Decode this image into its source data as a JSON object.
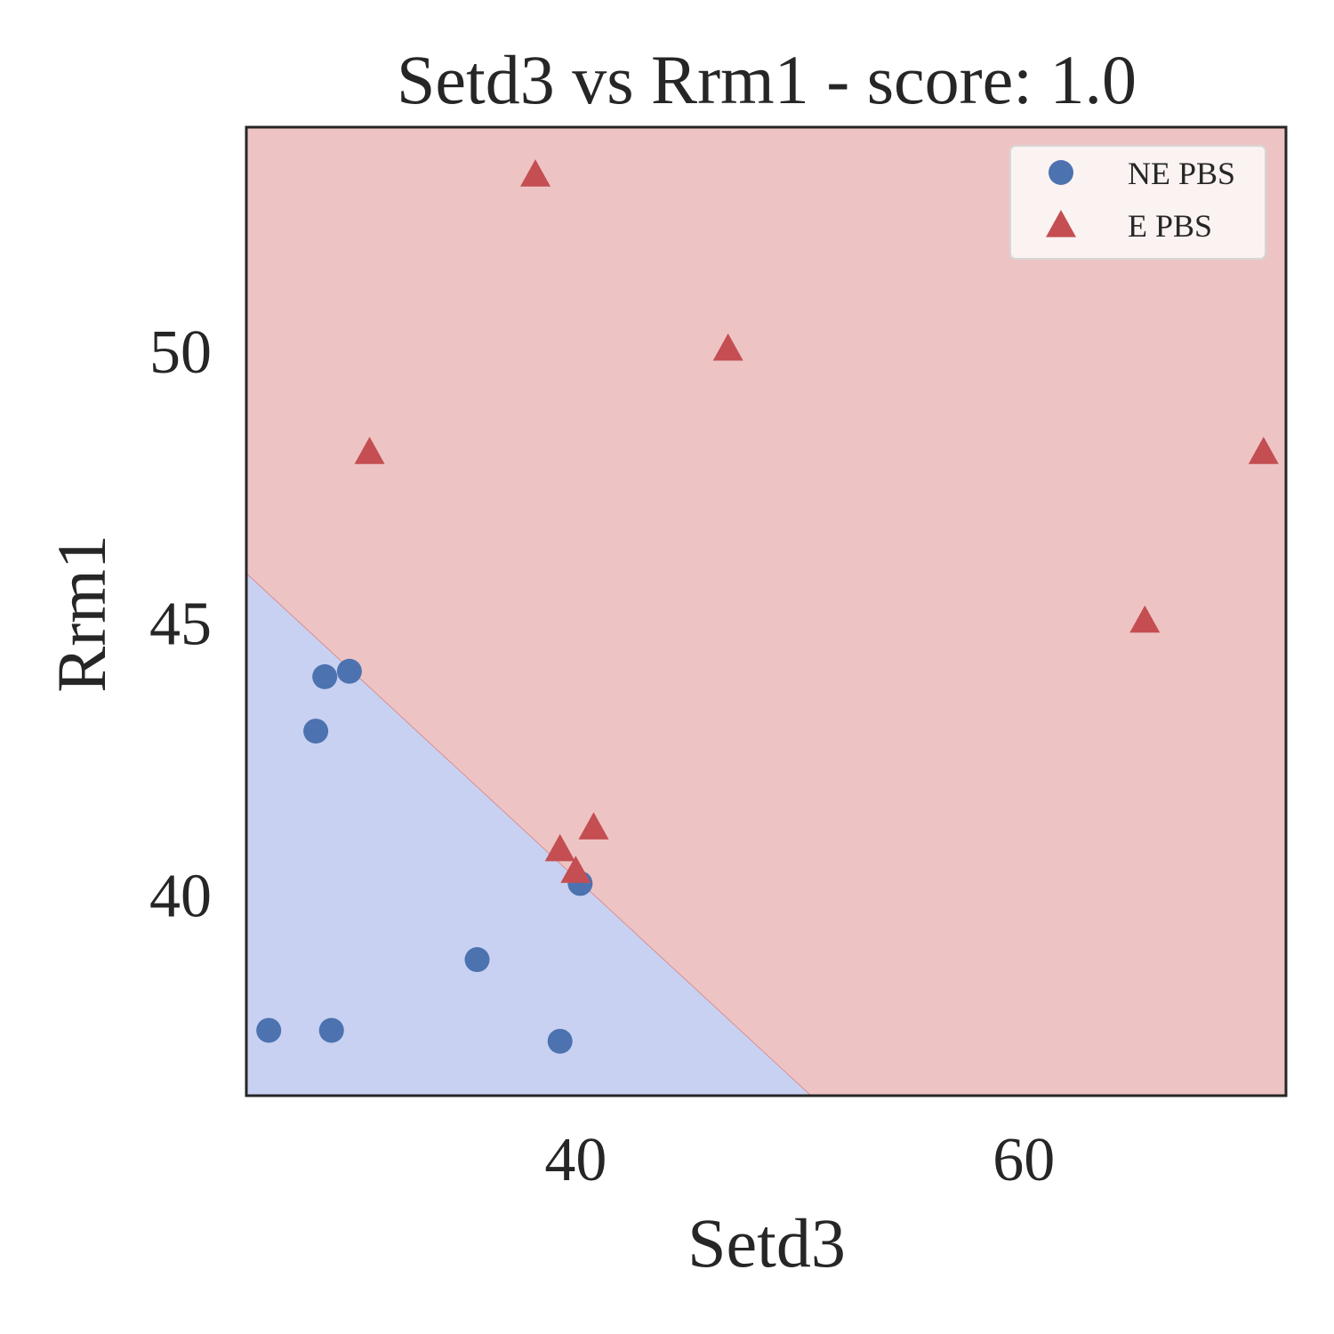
{
  "chart_data": {
    "type": "scatter",
    "title": "Setd3 vs Rrm1 - score: 1.0",
    "xlabel": "Setd3",
    "ylabel": "Rrm1",
    "xlim": [
      25.3,
      71.7
    ],
    "ylim": [
      36.3,
      54.1
    ],
    "xticks": [
      40,
      60
    ],
    "xtick_labels": [
      "40",
      "60"
    ],
    "yticks": [
      40,
      45,
      50
    ],
    "ytick_labels": [
      "40",
      "45",
      "50"
    ],
    "grid": false,
    "legend_position": "top-right",
    "decision_boundary": [
      [
        25.3,
        45.9
      ],
      [
        50.5,
        36.3
      ]
    ],
    "regions": [
      {
        "class": "NE PBS",
        "side": "lower-left",
        "color": "#c8d1f1"
      },
      {
        "class": "E PBS",
        "side": "upper-right",
        "color": "#edc4c3"
      }
    ],
    "series": [
      {
        "name": "NE PBS",
        "marker": "circle",
        "color": "#4c72b0",
        "points": [
          [
            26.3,
            37.5
          ],
          [
            28.8,
            44.0
          ],
          [
            29.9,
            44.1
          ],
          [
            28.4,
            43.0
          ],
          [
            29.1,
            37.5
          ],
          [
            35.6,
            38.8
          ],
          [
            39.3,
            37.3
          ],
          [
            40.2,
            40.2
          ]
        ]
      },
      {
        "name": "E PBS",
        "marker": "triangle",
        "color": "#c44e52",
        "points": [
          [
            38.2,
            53.2
          ],
          [
            30.8,
            48.1
          ],
          [
            46.8,
            50.0
          ],
          [
            39.3,
            40.8
          ],
          [
            40.0,
            40.4
          ],
          [
            40.8,
            41.2
          ],
          [
            65.4,
            45.0
          ],
          [
            70.7,
            48.1
          ]
        ]
      }
    ]
  }
}
